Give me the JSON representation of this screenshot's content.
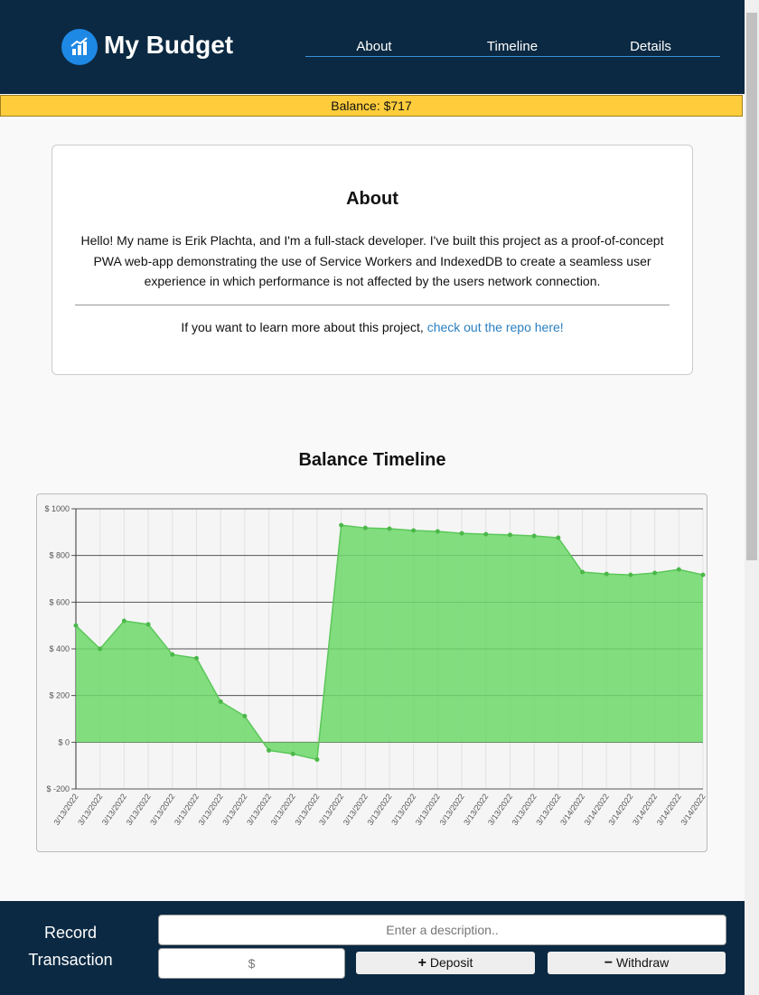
{
  "header": {
    "title": "My Budget",
    "nav": [
      "About",
      "Timeline",
      "Details"
    ]
  },
  "balance": "Balance: $717",
  "about": {
    "title": "About",
    "text": "Hello! My name is Erik Plachta, and I'm a full-stack developer. I've built this project as a proof-of-concept PWA web-app demonstrating the use of Service Workers and IndexedDB to create a seamless user experience in which performance is not affected by the users network connection.",
    "more": "If you want to learn more about this project,",
    "link": "check out the repo here!"
  },
  "chart_data": {
    "type": "area",
    "title": "Balance Timeline",
    "categories": [
      "3/13/2022",
      "3/13/2022",
      "3/13/2022",
      "3/13/2022",
      "3/13/2022",
      "3/13/2022",
      "3/13/2022",
      "3/13/2022",
      "3/13/2022",
      "3/13/2022",
      "3/13/2022",
      "3/13/2022",
      "3/13/2022",
      "3/13/2022",
      "3/13/2022",
      "3/13/2022",
      "3/13/2022",
      "3/13/2022",
      "3/13/2022",
      "3/13/2022",
      "3/13/2022",
      "3/14/2022",
      "3/14/2022",
      "3/14/2022",
      "3/14/2022",
      "3/14/2022",
      "3/14/2022"
    ],
    "values": [
      500,
      400,
      520,
      505,
      376,
      360,
      174,
      112,
      -35,
      -50,
      -74,
      930,
      918,
      915,
      907,
      903,
      895,
      891,
      888,
      884,
      876,
      729,
      721,
      717,
      725,
      740,
      717
    ],
    "color": "#6dd86a",
    "ylim": [
      -200,
      1000
    ],
    "yticks": [
      {
        "value": -200,
        "label": "$ -200"
      },
      {
        "value": 0,
        "label": "$ 0"
      },
      {
        "value": 200,
        "label": "$ 200"
      },
      {
        "value": 400,
        "label": "$ 400"
      },
      {
        "value": 600,
        "label": "$ 600"
      },
      {
        "value": 800,
        "label": "$ 800"
      },
      {
        "value": 1000,
        "label": "$ 1000"
      }
    ],
    "grid": true
  },
  "form": {
    "title": "Record Transaction",
    "description_placeholder": "Enter a description..",
    "amount_placeholder": "$",
    "deposit": "Deposit",
    "withdraw": "Withdraw"
  }
}
